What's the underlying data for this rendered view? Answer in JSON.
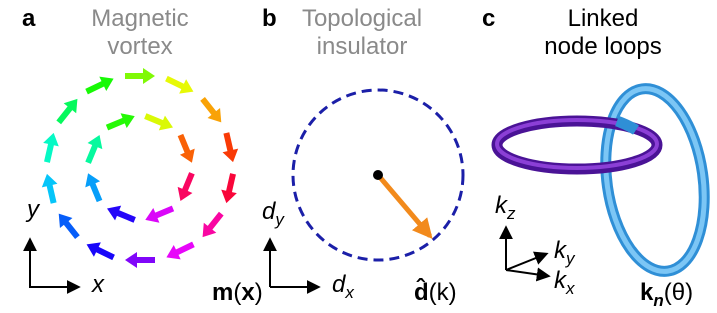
{
  "panels": [
    {
      "letter": "a",
      "title": [
        "Magnetic",
        "vortex"
      ],
      "axis_y": {
        "main": "y"
      },
      "axis_x": {
        "main": "x"
      },
      "field": {
        "main": "m",
        "open": "(",
        "arg": "x",
        "close": ")"
      }
    },
    {
      "letter": "b",
      "title": [
        "Topological",
        "insulator"
      ],
      "axis_y": {
        "main": "d",
        "sub": "y"
      },
      "axis_x": {
        "main": "d",
        "sub": "x"
      },
      "field": {
        "main": "d̂",
        "open": "(",
        "arg": "k",
        "close": ")"
      }
    },
    {
      "letter": "c",
      "title": [
        "Linked",
        "node loops"
      ],
      "axis_z": {
        "main": "k",
        "sub": "z"
      },
      "axis_y": {
        "main": "k",
        "sub": "y"
      },
      "axis_x": {
        "main": "k",
        "sub": "x"
      },
      "field": {
        "main": "k",
        "sub": "n",
        "open": "(",
        "arg": "θ",
        "close": ")"
      }
    }
  ]
}
